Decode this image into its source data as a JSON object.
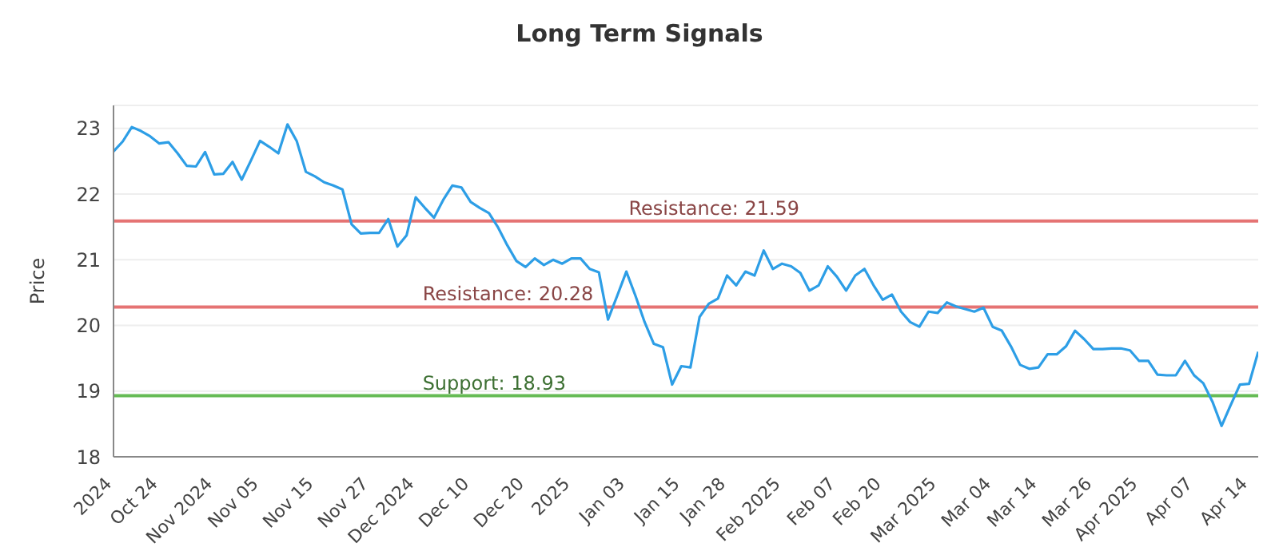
{
  "chart_data": {
    "type": "line",
    "title": "Long Term Signals",
    "ylabel": "Price",
    "categories": [
      "2024",
      null,
      null,
      null,
      null,
      "Oct 24",
      null,
      null,
      null,
      null,
      null,
      "Nov 2024",
      null,
      null,
      null,
      null,
      "Nov 05",
      null,
      null,
      null,
      null,
      null,
      "Nov 15",
      null,
      null,
      null,
      null,
      null,
      "Nov 27",
      null,
      null,
      null,
      null,
      "Dec 2024",
      null,
      null,
      null,
      null,
      null,
      "Dec 10",
      null,
      null,
      null,
      null,
      null,
      "Dec 20",
      null,
      null,
      null,
      null,
      "2025",
      null,
      null,
      null,
      null,
      null,
      "Jan 03",
      null,
      null,
      null,
      null,
      null,
      "Jan 15",
      null,
      null,
      null,
      null,
      "Jan 28",
      null,
      null,
      null,
      null,
      null,
      "Feb 2025",
      null,
      null,
      null,
      null,
      null,
      "Feb 07",
      null,
      null,
      null,
      null,
      "Feb 20",
      null,
      null,
      null,
      null,
      null,
      "Mar 2025",
      null,
      null,
      null,
      null,
      null,
      "Mar 04",
      null,
      null,
      null,
      null,
      "Mar 14",
      null,
      null,
      null,
      null,
      null,
      "Mar 26",
      null,
      null,
      null,
      null,
      "Apr 2025",
      null,
      null,
      null,
      null,
      null,
      "Apr 07",
      null,
      null,
      null,
      null,
      null,
      "Apr 14",
      null
    ],
    "series": [
      {
        "color": "#2d9ee6",
        "values": [
          22.65,
          22.8,
          23.02,
          22.96,
          22.88,
          22.77,
          22.79,
          22.62,
          22.43,
          22.42,
          22.64,
          22.3,
          22.31,
          22.49,
          22.22,
          22.51,
          22.81,
          22.72,
          22.62,
          23.06,
          22.81,
          22.34,
          22.27,
          22.18,
          22.13,
          22.07,
          21.54,
          21.4,
          21.41,
          21.41,
          21.62,
          21.2,
          21.37,
          21.95,
          21.79,
          21.64,
          21.91,
          22.13,
          22.1,
          21.88,
          21.79,
          21.71,
          21.49,
          21.22,
          20.98,
          20.89,
          21.02,
          20.92,
          21.0,
          20.94,
          21.02,
          21.02,
          20.86,
          20.81,
          20.09,
          20.45,
          20.82,
          20.45,
          20.05,
          19.72,
          19.67,
          19.1,
          19.38,
          19.36,
          20.13,
          20.33,
          20.41,
          20.76,
          20.61,
          20.82,
          20.76,
          21.14,
          20.86,
          20.94,
          20.9,
          20.8,
          20.53,
          20.61,
          20.9,
          20.74,
          20.53,
          20.76,
          20.86,
          20.61,
          20.39,
          20.47,
          20.21,
          20.05,
          19.98,
          20.21,
          20.19,
          20.35,
          20.29,
          20.25,
          20.21,
          20.27,
          19.98,
          19.92,
          19.68,
          19.4,
          19.34,
          19.36,
          19.56,
          19.56,
          19.68,
          19.92,
          19.79,
          19.64,
          19.64,
          19.65,
          19.65,
          19.62,
          19.46,
          19.46,
          19.25,
          19.24,
          19.24,
          19.46,
          19.24,
          19.12,
          18.84,
          18.47,
          18.79,
          19.1,
          19.11,
          19.6
        ]
      }
    ],
    "ylim": [
      18,
      23.35
    ],
    "yticks": [
      18,
      19,
      20,
      21,
      22,
      23
    ],
    "grid": "y",
    "legend": false,
    "marker": "none",
    "line_style": "solid",
    "ref_lines": [
      {
        "axis": "y",
        "value": 21.59,
        "label": "Resistance: 21.59",
        "color": "#e57373"
      },
      {
        "axis": "y",
        "value": 20.28,
        "label": "Resistance: 20.28",
        "color": "#e57373"
      },
      {
        "axis": "y",
        "value": 18.93,
        "label": "Support: 18.93",
        "color": "#66bb55"
      }
    ]
  }
}
